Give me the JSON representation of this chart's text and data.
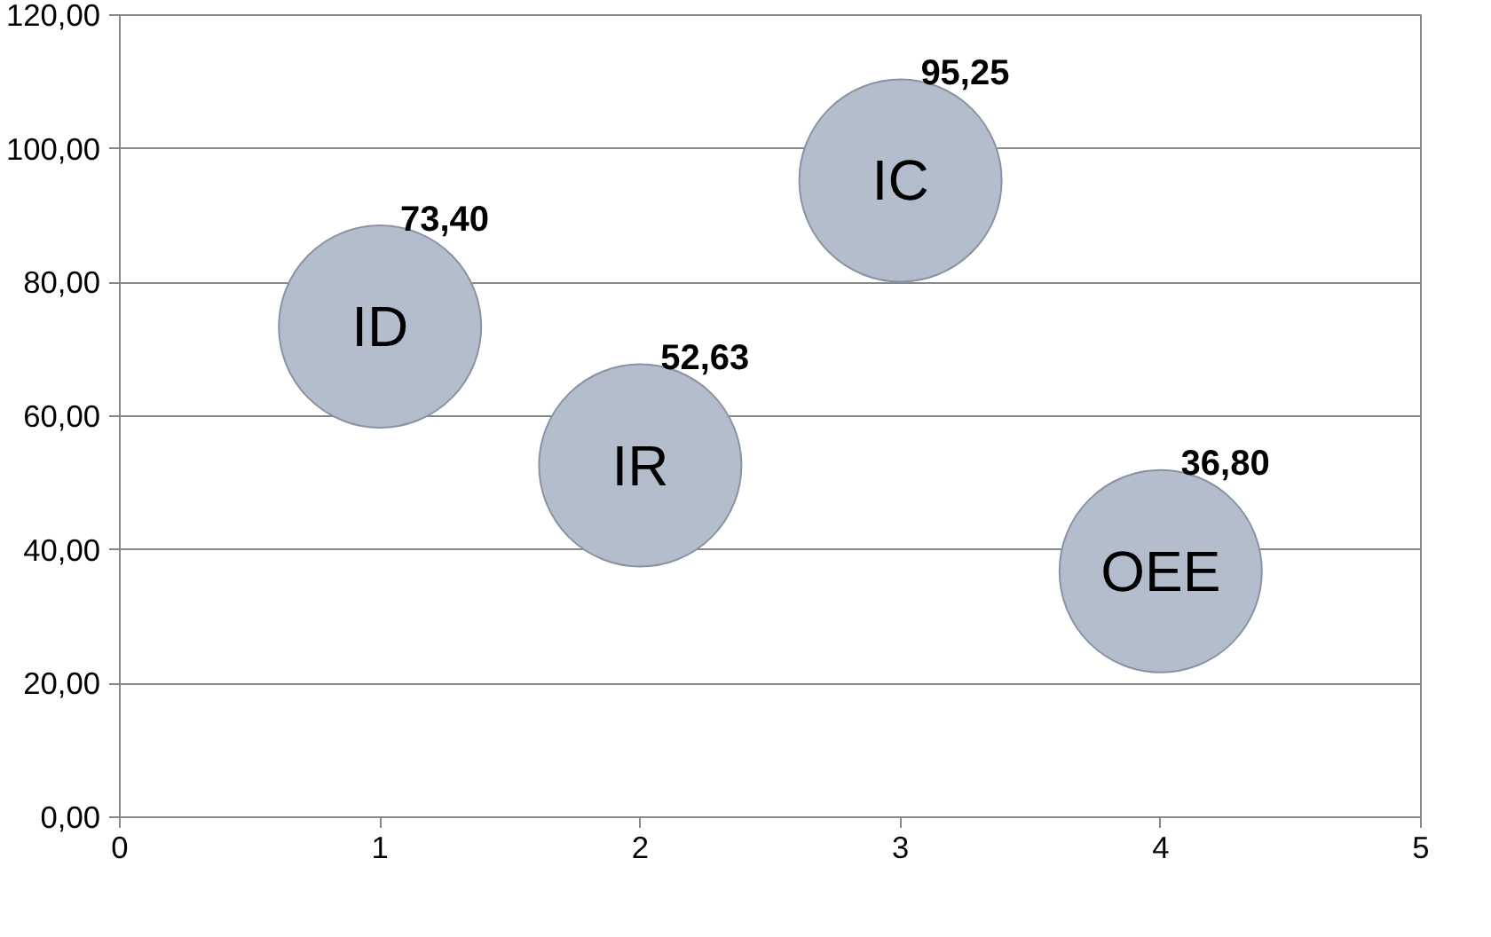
{
  "chart_data": {
    "type": "bubble",
    "x": [
      1,
      2,
      3,
      4
    ],
    "series": [
      {
        "color": "#b4bdcc",
        "values": [
          73.4,
          52.63,
          95.25,
          36.8
        ],
        "sizes": [
          1,
          1,
          1,
          1
        ],
        "value_labels": [
          "73,40",
          "52,63",
          "95,25",
          "36,80"
        ]
      }
    ],
    "annotations": [
      {
        "text": "ID",
        "x": 1,
        "y": 73.4
      },
      {
        "text": "IR",
        "x": 2,
        "y": 52.63
      },
      {
        "text": "IC",
        "x": 3,
        "y": 95.25
      },
      {
        "text": "OEE",
        "x": 4,
        "y": 36.8
      }
    ],
    "xlim": [
      0,
      5
    ],
    "xticks": [
      0,
      1,
      2,
      3,
      4,
      5
    ],
    "ylim": [
      0,
      120
    ],
    "yticks": [
      {
        "value": 0,
        "label": "0,00"
      },
      {
        "value": 20,
        "label": "20,00"
      },
      {
        "value": 40,
        "label": "40,00"
      },
      {
        "value": 60,
        "label": "60,00"
      },
      {
        "value": 80,
        "label": "80,00"
      },
      {
        "value": 100,
        "label": "100,00"
      },
      {
        "value": 120,
        "label": "120,00"
      }
    ],
    "grid": "y"
  }
}
